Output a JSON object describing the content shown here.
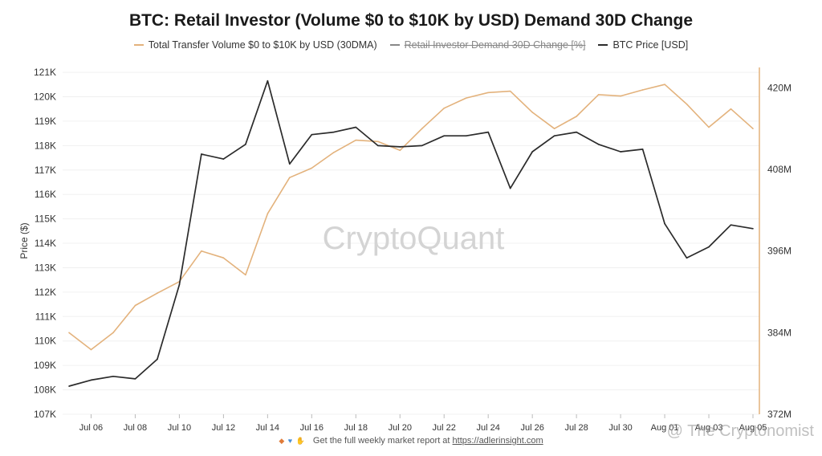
{
  "chart_data": {
    "type": "line",
    "title": "BTC: Retail Investor (Volume $0 to $10K by USD) Demand 30D Change",
    "legend": [
      {
        "name": "Total Transfer Volume $0 to $10K by USD (30DMA)",
        "color": "#e3b27c",
        "hidden": false
      },
      {
        "name": "Retail Investor Demand 30D Change [%]",
        "color": "#888888",
        "hidden": true
      },
      {
        "name": "BTC Price [USD]",
        "color": "#2b2b2b",
        "hidden": false
      }
    ],
    "ylabel_left": "Price ($)",
    "x_ticks": [
      "Jul 06",
      "Jul 08",
      "Jul 10",
      "Jul 12",
      "Jul 14",
      "Jul 16",
      "Jul 18",
      "Jul 20",
      "Jul 22",
      "Jul 24",
      "Jul 26",
      "Jul 28",
      "Jul 30",
      "Aug 01",
      "Aug 03",
      "Aug 05"
    ],
    "x": [
      "Jul 05",
      "Jul 06",
      "Jul 07",
      "Jul 08",
      "Jul 09",
      "Jul 10",
      "Jul 11",
      "Jul 12",
      "Jul 13",
      "Jul 14",
      "Jul 15",
      "Jul 16",
      "Jul 17",
      "Jul 18",
      "Jul 19",
      "Jul 20",
      "Jul 21",
      "Jul 22",
      "Jul 23",
      "Jul 24",
      "Jul 25",
      "Jul 26",
      "Jul 27",
      "Jul 28",
      "Jul 29",
      "Jul 30",
      "Jul 31",
      "Aug 01",
      "Aug 02",
      "Aug 03",
      "Aug 04",
      "Aug 05"
    ],
    "y_left_ticks": [
      "107K",
      "108K",
      "109K",
      "110K",
      "111K",
      "112K",
      "113K",
      "114K",
      "115K",
      "116K",
      "117K",
      "118K",
      "119K",
      "120K",
      "121K"
    ],
    "y_left_range": [
      107000,
      121200
    ],
    "y_right_ticks": [
      "372M",
      "384M",
      "396M",
      "408M",
      "420M"
    ],
    "y_right_range": [
      372000000,
      423000000
    ],
    "series": [
      {
        "name": "Total Transfer Volume $0 to $10K by USD (30DMA)",
        "axis": "right",
        "color": "#e3b27c",
        "values": [
          384000000,
          381500000,
          384000000,
          388000000,
          389800000,
          391500000,
          396000000,
          395000000,
          392500000,
          401500000,
          406800000,
          408200000,
          410500000,
          412300000,
          412100000,
          410800000,
          414000000,
          417000000,
          418500000,
          419300000,
          419500000,
          416400000,
          414000000,
          415800000,
          419000000,
          418800000,
          419700000,
          420500000,
          417600000,
          414200000,
          416900000,
          414000000
        ]
      },
      {
        "name": "BTC Price [USD]",
        "axis": "left",
        "color": "#2b2b2b",
        "values": [
          108150,
          108400,
          108550,
          108450,
          109250,
          112300,
          117650,
          117450,
          118050,
          120650,
          117250,
          118450,
          118550,
          118750,
          118000,
          117950,
          118000,
          118400,
          118400,
          118550,
          116250,
          117750,
          118400,
          118550,
          118050,
          117750,
          117850,
          114800,
          113400,
          113850,
          114750,
          114600
        ]
      }
    ],
    "watermark": "CryptoQuant"
  },
  "footer": {
    "text": "Get the full weekly market report at ",
    "link": "https://adlerinsight.com"
  },
  "overlay": {
    "credit": "@ The Cryptonomist"
  }
}
